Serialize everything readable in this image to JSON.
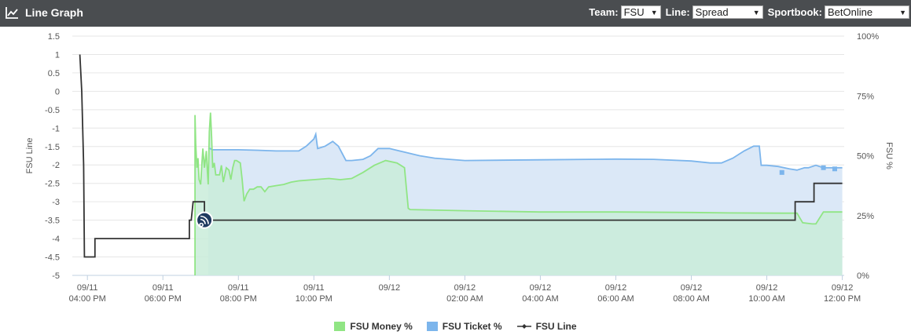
{
  "header": {
    "title": "Line Graph",
    "title_icon": "line-chart-icon",
    "team_label": "Team:",
    "team_value": "FSU",
    "line_label": "Line:",
    "line_value": "Spread",
    "sportbook_label": "Sportbook:",
    "sportbook_value": "BetOnline"
  },
  "colors": {
    "money": "#90e584",
    "money_fill": "#c9ecd9",
    "ticket": "#7cb5ec",
    "ticket_fill": "#dbe8f7",
    "line": "#333333",
    "header_bg": "#4a4d50"
  },
  "chart_data": {
    "type": "line",
    "ylabel_left": "FSU Line",
    "ylabel_right": "FSU %",
    "y_left_range": [
      -5,
      1.5
    ],
    "y_left_ticks": [
      "1.5",
      "1",
      "0.5",
      "0",
      "-0.5",
      "-1",
      "-1.5",
      "-2",
      "-2.5",
      "-3",
      "-3.5",
      "-4",
      "-4.5",
      "-5"
    ],
    "y_right_range": [
      0,
      100
    ],
    "y_right_ticks": [
      "100%",
      "75%",
      "50%",
      "25%",
      "0%"
    ],
    "x_range_hours": [
      15.6,
      36.05
    ],
    "x_ticks": [
      {
        "h": 16,
        "date": "09/11",
        "time": "04:00 PM"
      },
      {
        "h": 18,
        "date": "09/11",
        "time": "06:00 PM"
      },
      {
        "h": 20,
        "date": "09/11",
        "time": "08:00 PM"
      },
      {
        "h": 22,
        "date": "09/11",
        "time": "10:00 PM"
      },
      {
        "h": 24,
        "date": "09/12",
        "time": ""
      },
      {
        "h": 26,
        "date": "09/12",
        "time": "02:00 AM"
      },
      {
        "h": 28,
        "date": "09/12",
        "time": "04:00 AM"
      },
      {
        "h": 30,
        "date": "09/12",
        "time": "06:00 AM"
      },
      {
        "h": 32,
        "date": "09/12",
        "time": "08:00 AM"
      },
      {
        "h": 34,
        "date": "09/12",
        "time": "10:00 AM"
      },
      {
        "h": 36,
        "date": "09/12",
        "time": "12:00 PM"
      }
    ],
    "grid": true,
    "legend_position": "bottom",
    "series": [
      {
        "name": "FSU Money %",
        "axis": "right",
        "points": [
          [
            18.85,
            0
          ],
          [
            18.85,
            67
          ],
          [
            18.87,
            55
          ],
          [
            18.9,
            45
          ],
          [
            18.93,
            49
          ],
          [
            18.96,
            40
          ],
          [
            19.0,
            38
          ],
          [
            19.03,
            46
          ],
          [
            19.06,
            53
          ],
          [
            19.1,
            45
          ],
          [
            19.15,
            52
          ],
          [
            19.18,
            43
          ],
          [
            19.2,
            38
          ],
          [
            19.23,
            60
          ],
          [
            19.26,
            68
          ],
          [
            19.29,
            58
          ],
          [
            19.32,
            45
          ],
          [
            19.36,
            47
          ],
          [
            19.4,
            42
          ],
          [
            19.5,
            42
          ],
          [
            19.55,
            46
          ],
          [
            19.6,
            39
          ],
          [
            19.68,
            45
          ],
          [
            19.75,
            44
          ],
          [
            19.8,
            40
          ],
          [
            19.85,
            45
          ],
          [
            19.9,
            48
          ],
          [
            19.95,
            48
          ],
          [
            20.05,
            47
          ],
          [
            20.1,
            40
          ],
          [
            20.15,
            31
          ],
          [
            20.22,
            34
          ],
          [
            20.3,
            36
          ],
          [
            20.4,
            36
          ],
          [
            20.5,
            37
          ],
          [
            20.6,
            37
          ],
          [
            20.7,
            35
          ],
          [
            20.8,
            37
          ],
          [
            21.0,
            37.5
          ],
          [
            21.2,
            38
          ],
          [
            21.4,
            39
          ],
          [
            21.6,
            39.5
          ],
          [
            22.0,
            40
          ],
          [
            22.4,
            40.5
          ],
          [
            22.7,
            40
          ],
          [
            23.0,
            40.5
          ],
          [
            23.3,
            43
          ],
          [
            23.6,
            46
          ],
          [
            23.9,
            48
          ],
          [
            24.2,
            47
          ],
          [
            24.4,
            45
          ],
          [
            24.5,
            28
          ],
          [
            24.55,
            27.5
          ],
          [
            26,
            27
          ],
          [
            28,
            26.5
          ],
          [
            30,
            26.5
          ],
          [
            32,
            26.3
          ],
          [
            33,
            26.1
          ],
          [
            34.4,
            26
          ],
          [
            34.8,
            26
          ],
          [
            34.95,
            22
          ],
          [
            35.2,
            21.5
          ],
          [
            35.3,
            21.5
          ],
          [
            35.5,
            26.5
          ],
          [
            36,
            26.5
          ]
        ]
      },
      {
        "name": "FSU Ticket %",
        "axis": "right",
        "points": [
          [
            19.2,
            53
          ],
          [
            19.25,
            53
          ],
          [
            19.3,
            52.5
          ],
          [
            19.6,
            52.5
          ],
          [
            20,
            52.5
          ],
          [
            20.5,
            52.3
          ],
          [
            21,
            52
          ],
          [
            21.3,
            52
          ],
          [
            21.6,
            52
          ],
          [
            21.8,
            54
          ],
          [
            22.0,
            57
          ],
          [
            22.05,
            59
          ],
          [
            22.1,
            53
          ],
          [
            22.3,
            54
          ],
          [
            22.5,
            56
          ],
          [
            22.65,
            54
          ],
          [
            22.85,
            48
          ],
          [
            23.0,
            48
          ],
          [
            23.3,
            48.5
          ],
          [
            23.5,
            50
          ],
          [
            23.7,
            53
          ],
          [
            24.0,
            53
          ],
          [
            24.4,
            51.5
          ],
          [
            24.8,
            50
          ],
          [
            25.2,
            49
          ],
          [
            25.6,
            48.5
          ],
          [
            26,
            48
          ],
          [
            28,
            48.3
          ],
          [
            30,
            48.6
          ],
          [
            31,
            48.5
          ],
          [
            32,
            47.8
          ],
          [
            32.5,
            47
          ],
          [
            32.8,
            47
          ],
          [
            33.1,
            49
          ],
          [
            33.4,
            52
          ],
          [
            33.65,
            54
          ],
          [
            33.8,
            54
          ],
          [
            33.85,
            46
          ],
          [
            34,
            46
          ],
          [
            34.3,
            45.5
          ],
          [
            34.6,
            44.5
          ],
          [
            34.8,
            44
          ],
          [
            35,
            45
          ],
          [
            35.1,
            45
          ],
          [
            35.3,
            46
          ],
          [
            35.5,
            45
          ],
          [
            36,
            45
          ]
        ]
      },
      {
        "name": "FSU Line",
        "axis": "left",
        "points": [
          [
            15.8,
            1
          ],
          [
            15.85,
            0
          ],
          [
            15.9,
            -2
          ],
          [
            15.92,
            -4.5
          ],
          [
            16.2,
            -4.5
          ],
          [
            16.2,
            -4
          ],
          [
            18.7,
            -4
          ],
          [
            18.7,
            -3.5
          ],
          [
            18.75,
            -3.5
          ],
          [
            18.8,
            -3
          ],
          [
            19.1,
            -3
          ],
          [
            19.1,
            -3.5
          ],
          [
            34.75,
            -3.5
          ],
          [
            34.75,
            -3
          ],
          [
            35.25,
            -3
          ],
          [
            35.25,
            -2.5
          ],
          [
            36,
            -2.5
          ]
        ]
      }
    ]
  },
  "legend": {
    "money_label": "FSU Money %",
    "ticket_label": "FSU Ticket %",
    "line_label": "FSU Line"
  }
}
